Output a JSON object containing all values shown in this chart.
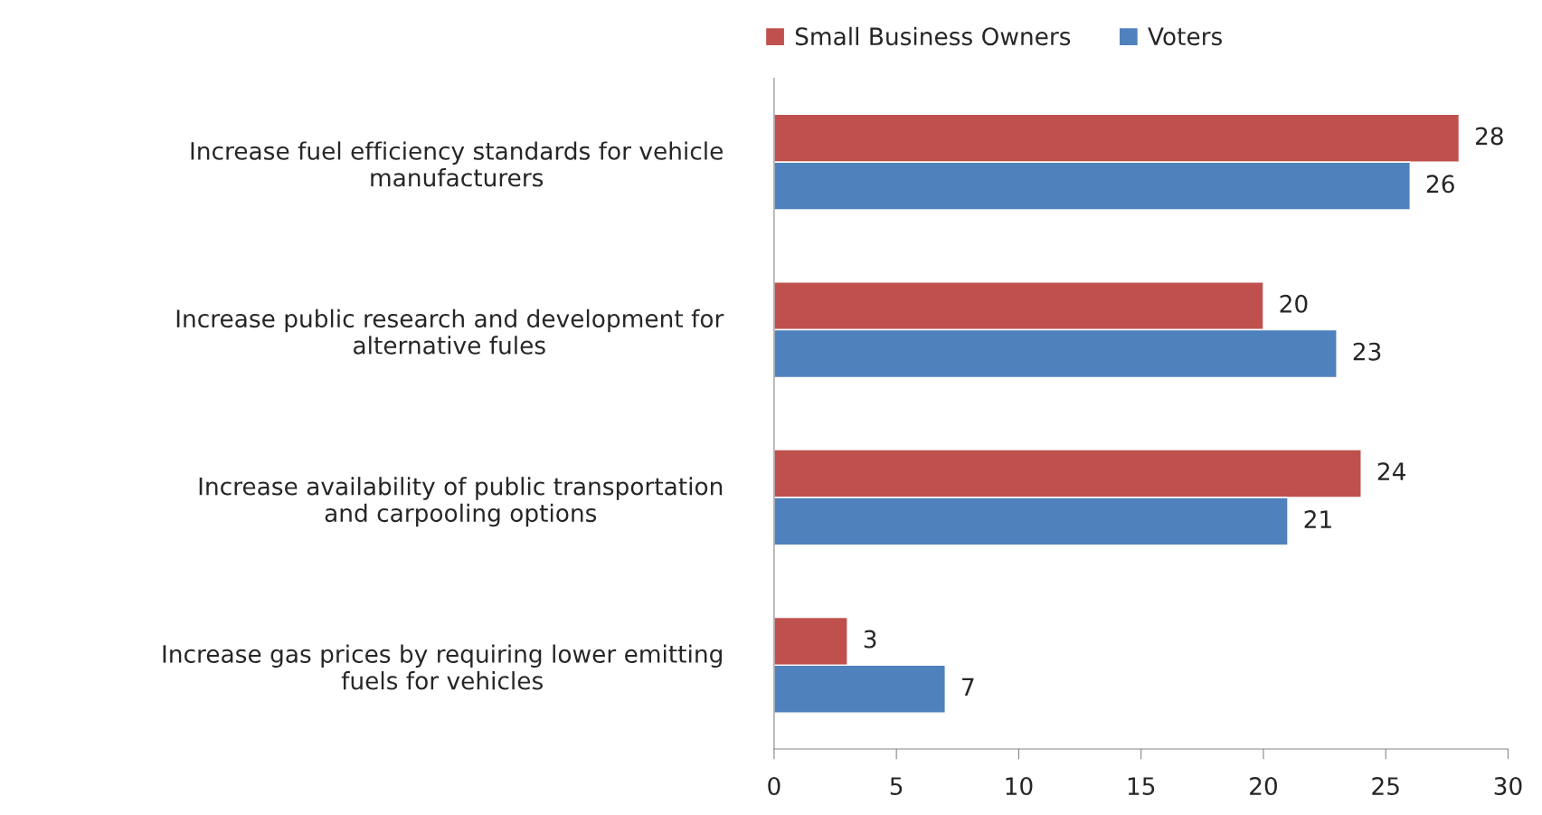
{
  "chart_data": {
    "type": "bar",
    "orientation": "horizontal",
    "categories": [
      "Increase fuel efficiency standards for vehicle\nmanufacturers",
      "Increase public research and development for\nalternative fules",
      "Increase availability of public transportation\nand carpooling options",
      "Increase gas prices by requiring lower emitting\nfuels for vehicles"
    ],
    "series": [
      {
        "name": "Small Business Owners",
        "color": "#c0504d",
        "values": [
          28,
          20,
          24,
          3
        ]
      },
      {
        "name": "Voters",
        "color": "#4f81bd",
        "values": [
          26,
          23,
          21,
          7
        ]
      }
    ],
    "xlim": [
      0,
      30
    ],
    "xticks": [
      0,
      5,
      10,
      15,
      20,
      25,
      30
    ],
    "data_labels": true,
    "grid": false,
    "legend": "top"
  }
}
